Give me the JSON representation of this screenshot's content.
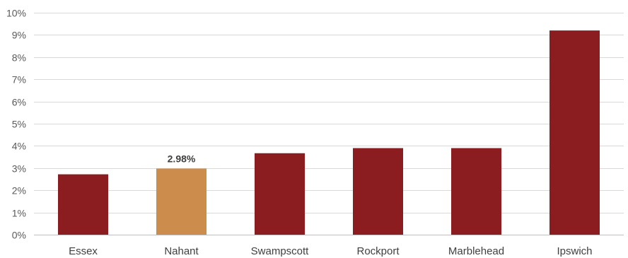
{
  "chart_data": {
    "type": "bar",
    "categories": [
      "Essex",
      "Nahant",
      "Swampscott",
      "Rockport",
      "Marblehead",
      "Ipswich"
    ],
    "values": [
      2.72,
      2.98,
      3.67,
      3.9,
      3.9,
      9.2
    ],
    "value_unit": "%",
    "y_tick_labels": [
      "0%",
      "1%",
      "2%",
      "3%",
      "4%",
      "5%",
      "6%",
      "7%",
      "8%",
      "9%",
      "10%"
    ],
    "ylim": [
      0,
      10
    ],
    "grid": true,
    "legend": "none",
    "title": "",
    "xlabel": "",
    "ylabel": "",
    "highlight_category": "Nahant",
    "data_labels": [
      {
        "category": "Nahant",
        "text": "2.98%"
      }
    ],
    "colors": {
      "bar": "#8b1c1f",
      "highlight": "#cc8c4c",
      "grid": "#d9d9d9",
      "axis": "#bfbfbf"
    }
  }
}
